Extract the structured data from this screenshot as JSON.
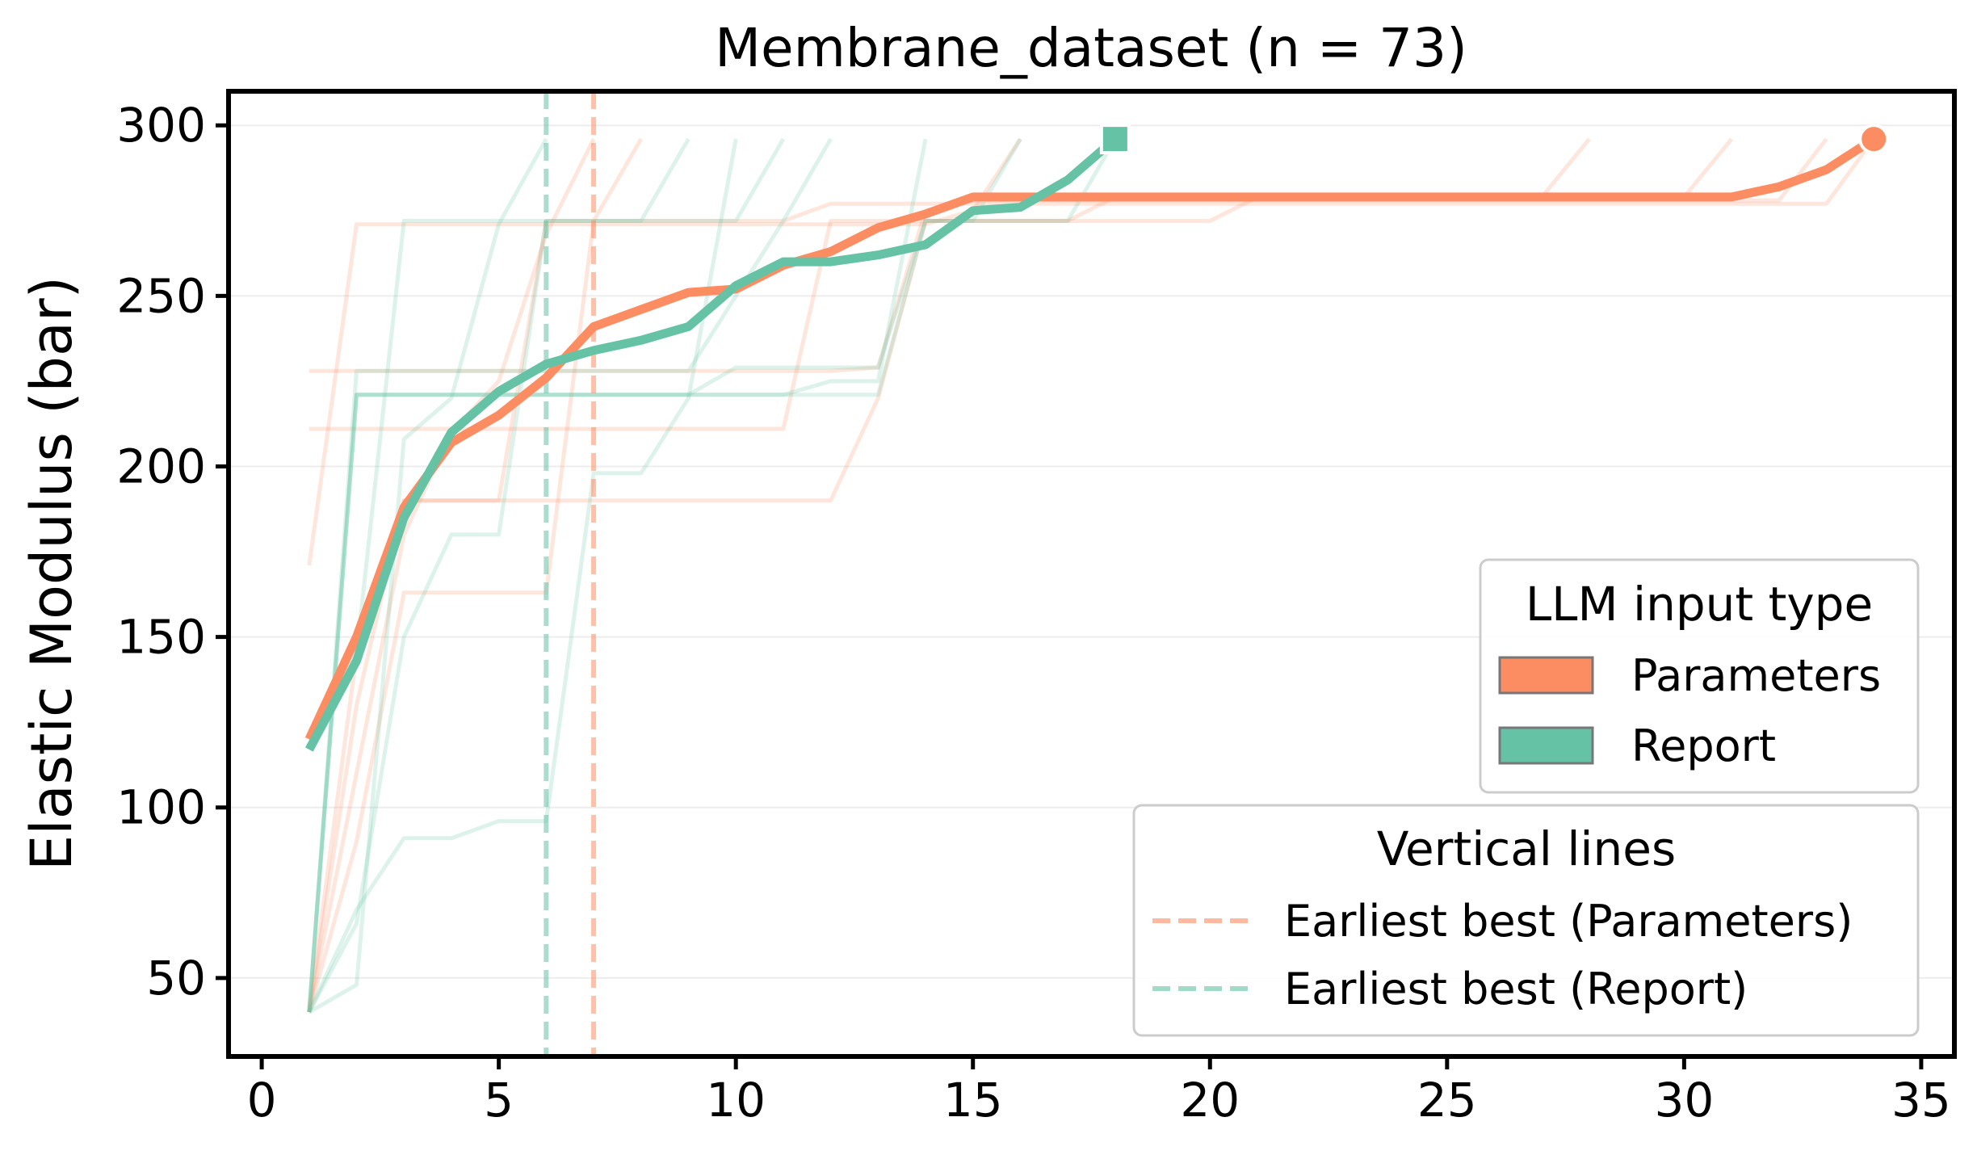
{
  "chart_data": {
    "type": "line",
    "title": "Membrane_dataset (n = 73)",
    "xlabel": "",
    "ylabel": "Elastic Modulus (bar)",
    "xlim": [
      -0.7,
      35.7
    ],
    "ylim": [
      27,
      310
    ],
    "xticks": [
      0,
      5,
      10,
      15,
      20,
      25,
      30,
      35
    ],
    "yticks": [
      50,
      100,
      150,
      200,
      250,
      300
    ],
    "grid": "horizontal",
    "colors": {
      "parameters": "#fc8d62",
      "report": "#66c2a5"
    },
    "series": [
      {
        "name": "Parameters",
        "key": "parameters",
        "x": [
          1,
          2,
          3,
          4,
          5,
          6,
          7,
          8,
          9,
          10,
          11,
          12,
          13,
          14,
          15,
          16,
          17,
          18,
          19,
          20,
          21,
          22,
          23,
          24,
          25,
          26,
          27,
          28,
          29,
          30,
          31,
          32,
          33,
          34
        ],
        "values": [
          120,
          150,
          188,
          207,
          215,
          226,
          241,
          246,
          251,
          252,
          259,
          263,
          270,
          274,
          279,
          279,
          279,
          279,
          279,
          279,
          279,
          279,
          279,
          279,
          279,
          279,
          279,
          279,
          279,
          279,
          279,
          282,
          287,
          296
        ],
        "end_marker": "circle"
      },
      {
        "name": "Report",
        "key": "report",
        "x": [
          1,
          2,
          3,
          4,
          5,
          6,
          7,
          8,
          9,
          10,
          11,
          12,
          13,
          14,
          15,
          16,
          17,
          18
        ],
        "values": [
          117,
          143,
          185,
          210,
          222,
          230,
          234,
          237,
          241,
          253,
          260,
          260,
          262,
          265,
          275,
          276,
          284,
          296
        ],
        "end_marker": "square"
      }
    ],
    "runs": [
      {
        "group": "parameters",
        "x": [
          1,
          2,
          3,
          4,
          5,
          6,
          7,
          8
        ],
        "values": [
          40,
          130,
          190,
          190,
          190,
          272,
          272,
          296
        ]
      },
      {
        "group": "parameters",
        "x": [
          1,
          2,
          3,
          4,
          5,
          6,
          7,
          8,
          9,
          10,
          11,
          12,
          13,
          14,
          15,
          16,
          17,
          18,
          19,
          20,
          21,
          22,
          23,
          24,
          25,
          26,
          27,
          28,
          29,
          30,
          31,
          32,
          33
        ],
        "values": [
          228,
          228,
          228,
          228,
          228,
          228,
          228,
          228,
          228,
          228,
          228,
          228,
          229,
          275,
          278,
          278,
          278,
          278,
          278,
          278,
          278,
          278,
          278,
          278,
          278,
          278,
          278,
          278,
          278,
          278,
          278,
          278,
          296
        ]
      },
      {
        "group": "parameters",
        "x": [
          1,
          2,
          3,
          4,
          5,
          6,
          7,
          8,
          9,
          10,
          11,
          12,
          13,
          14,
          15,
          16,
          17,
          18,
          19,
          20,
          21,
          22,
          23,
          24,
          25,
          26,
          27,
          28,
          29,
          30,
          31,
          32,
          33,
          34
        ],
        "values": [
          40,
          90,
          163,
          163,
          163,
          163,
          272,
          272,
          272,
          272,
          272,
          277,
          277,
          277,
          277,
          277,
          277,
          277,
          277,
          277,
          277,
          277,
          277,
          277,
          277,
          277,
          277,
          277,
          277,
          277,
          277,
          277,
          277,
          296
        ]
      },
      {
        "group": "parameters",
        "x": [
          1,
          2,
          3,
          4,
          5,
          6,
          7,
          8,
          9,
          10,
          11,
          12,
          13,
          14,
          15,
          16
        ],
        "values": [
          171,
          271,
          271,
          271,
          271,
          271,
          271,
          271,
          271,
          271,
          271,
          271,
          271,
          271,
          275,
          296
        ]
      },
      {
        "group": "parameters",
        "x": [
          1,
          2,
          3,
          4,
          5,
          6,
          7,
          8,
          9,
          10,
          11,
          12,
          13,
          14,
          15,
          16,
          17,
          18,
          19,
          20,
          21,
          22,
          23,
          24,
          25,
          26,
          27,
          28
        ],
        "values": [
          211,
          211,
          211,
          211,
          211,
          211,
          211,
          211,
          211,
          211,
          211,
          272,
          272,
          272,
          272,
          272,
          272,
          272,
          272,
          272,
          279,
          279,
          279,
          279,
          279,
          279,
          279,
          296
        ]
      },
      {
        "group": "parameters",
        "x": [
          1,
          2,
          3,
          4,
          5,
          6,
          7,
          8,
          9,
          10,
          11,
          12,
          13,
          14,
          15,
          16,
          17,
          18,
          19,
          20,
          21,
          22,
          23,
          24,
          25,
          26,
          27,
          28,
          29,
          30,
          31
        ],
        "values": [
          40,
          145,
          190,
          190,
          190,
          190,
          190,
          190,
          190,
          190,
          190,
          190,
          220,
          272,
          272,
          272,
          272,
          279,
          279,
          279,
          279,
          279,
          279,
          279,
          279,
          279,
          279,
          279,
          279,
          279,
          296
        ]
      },
      {
        "group": "parameters",
        "x": [
          1,
          2,
          3,
          4,
          5,
          6,
          7
        ],
        "values": [
          40,
          110,
          180,
          210,
          225,
          268,
          296
        ]
      },
      {
        "group": "report",
        "x": [
          1,
          2,
          3,
          4,
          5,
          6,
          7,
          8,
          9,
          10,
          11,
          12
        ],
        "values": [
          40,
          228,
          228,
          228,
          228,
          228,
          228,
          228,
          228,
          250,
          272,
          296
        ]
      },
      {
        "group": "report",
        "x": [
          1,
          2,
          3,
          4,
          5,
          6,
          7,
          8,
          9,
          10,
          11,
          12,
          13,
          14,
          15,
          16,
          17,
          18
        ],
        "values": [
          40,
          221,
          221,
          221,
          221,
          221,
          221,
          221,
          221,
          221,
          221,
          221,
          221,
          272,
          272,
          272,
          272,
          296
        ]
      },
      {
        "group": "report",
        "x": [
          1,
          2,
          3,
          4,
          5,
          6,
          7,
          8,
          9,
          10
        ],
        "values": [
          40,
          70,
          91,
          91,
          96,
          96,
          198,
          198,
          220,
          296
        ]
      },
      {
        "group": "report",
        "x": [
          1,
          2,
          3,
          4,
          5,
          6,
          7,
          8,
          9,
          10,
          11,
          12,
          13,
          14,
          15,
          16
        ],
        "values": [
          40,
          221,
          221,
          221,
          221,
          221,
          221,
          221,
          221,
          229,
          229,
          229,
          229,
          272,
          272,
          296
        ]
      },
      {
        "group": "report",
        "x": [
          1,
          2,
          3,
          4,
          5,
          6
        ],
        "values": [
          40,
          48,
          208,
          220,
          271,
          296
        ]
      },
      {
        "group": "report",
        "x": [
          1,
          2,
          3,
          4,
          5,
          6,
          7,
          8,
          9,
          10,
          11
        ],
        "values": [
          40,
          66,
          150,
          180,
          180,
          272,
          272,
          272,
          272,
          272,
          296
        ]
      },
      {
        "group": "report",
        "x": [
          1,
          2,
          3,
          4,
          5,
          6,
          7,
          8,
          9,
          10,
          11,
          12,
          13,
          14
        ],
        "values": [
          40,
          221,
          221,
          221,
          221,
          221,
          221,
          221,
          221,
          221,
          221,
          225,
          225,
          296
        ]
      },
      {
        "group": "report",
        "x": [
          1,
          2,
          3,
          4,
          5,
          6,
          7,
          8,
          9
        ],
        "values": [
          118,
          145,
          272,
          272,
          272,
          272,
          272,
          272,
          296
        ]
      }
    ],
    "vlines": [
      {
        "name": "Earliest best (Parameters)",
        "key": "parameters",
        "x": 7
      },
      {
        "name": "Earliest best (Report)",
        "key": "report",
        "x": 6
      }
    ],
    "legends": [
      {
        "title": "LLM input type",
        "placement": "center-right",
        "entries": [
          {
            "label": "Parameters",
            "key": "parameters",
            "style": "patch"
          },
          {
            "label": "Report",
            "key": "report",
            "style": "patch"
          }
        ]
      },
      {
        "title": "Vertical lines",
        "placement": "lower-right",
        "entries": [
          {
            "label": "Earliest best (Parameters)",
            "key": "parameters",
            "style": "dashed"
          },
          {
            "label": "Earliest best (Report)",
            "key": "report",
            "style": "dashed"
          }
        ]
      }
    ]
  }
}
